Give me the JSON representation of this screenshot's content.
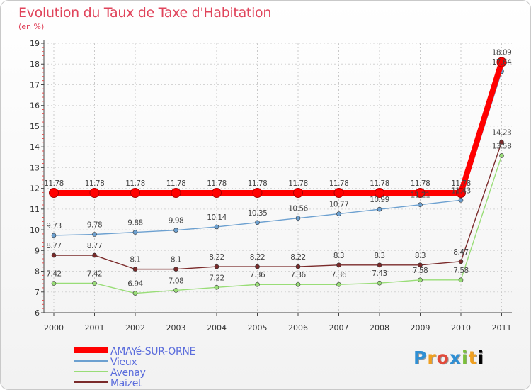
{
  "chart_data": {
    "type": "line",
    "title": "Evolution du Taux de Taxe d'Habitation",
    "subtitle": "(en %)",
    "categories": [
      "2000",
      "2001",
      "2002",
      "2003",
      "2004",
      "2005",
      "2006",
      "2007",
      "2008",
      "2009",
      "2010",
      "2011"
    ],
    "ylim": [
      6,
      19
    ],
    "yticks": [
      "6",
      "7",
      "8",
      "9",
      "10",
      "11",
      "12",
      "13",
      "14",
      "15",
      "16",
      "17",
      "18",
      "19"
    ],
    "series": [
      {
        "name": "AMAYé-SUR-ORNE",
        "color": "#ff0000",
        "values": [
          11.78,
          11.78,
          11.78,
          11.78,
          11.78,
          11.78,
          11.78,
          11.78,
          11.78,
          11.78,
          11.78,
          18.09
        ],
        "labels": [
          "11.78",
          "11.78",
          "11.78",
          "11.78",
          "11.78",
          "11.78",
          "11.78",
          "11.78",
          "11.78",
          "11.78",
          "11.78",
          "18.09"
        ]
      },
      {
        "name": "Vieux",
        "color": "#6ca0d0",
        "values": [
          9.73,
          9.78,
          9.88,
          9.98,
          10.14,
          10.35,
          10.56,
          10.77,
          10.99,
          11.21,
          11.43,
          17.64
        ],
        "labels": [
          "9.73",
          "9.78",
          "9.88",
          "9.98",
          "10.14",
          "10.35",
          "10.56",
          "10.77",
          "10.99",
          "11.21",
          "11.43",
          "17.64"
        ]
      },
      {
        "name": "Avenay",
        "color": "#99dd77",
        "values": [
          7.42,
          7.42,
          6.94,
          7.08,
          7.22,
          7.36,
          7.36,
          7.36,
          7.43,
          7.58,
          7.58,
          13.58
        ],
        "labels": [
          "7.42",
          "7.42",
          "6.94",
          "7.08",
          "7.22",
          "7.36",
          "7.36",
          "7.36",
          "7.43",
          "7.58",
          "7.58",
          "13.58"
        ]
      },
      {
        "name": "Maizet",
        "color": "#7a2a2a",
        "values": [
          8.77,
          8.77,
          8.1,
          8.1,
          8.22,
          8.22,
          8.22,
          8.3,
          8.3,
          8.3,
          8.47,
          14.23
        ],
        "labels": [
          "8.77",
          "8.77",
          "8.1",
          "8.1",
          "8.22",
          "8.22",
          "8.22",
          "8.3",
          "8.3",
          "8.3",
          "8.47",
          "14.23"
        ]
      }
    ],
    "legend_position": "bottom-left"
  },
  "logo": {
    "letters": [
      "P",
      "r",
      "o",
      "x",
      "i",
      "t",
      "i"
    ]
  }
}
